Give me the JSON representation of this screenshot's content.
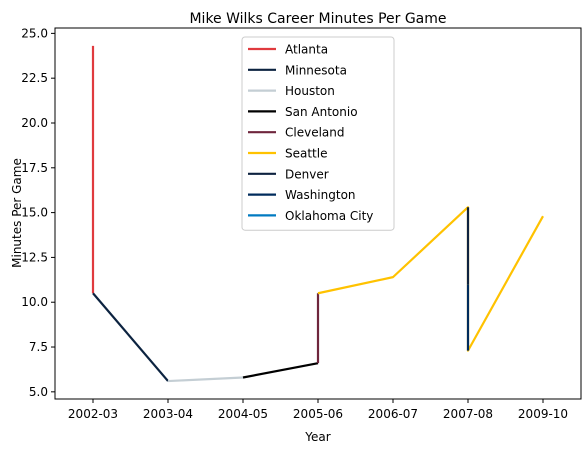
{
  "chart_data": {
    "type": "line",
    "title": "Mike Wilks  Career Minutes Per Game",
    "xlabel": "Year",
    "ylabel": "Minutes Per Game",
    "categories": [
      "2002-03",
      "2003-04",
      "2004-05",
      "2005-06",
      "2006-07",
      "2007-08",
      "2009-10"
    ],
    "ylim": [
      4.6,
      25.3
    ],
    "yticks": [
      "5.0",
      "7.5",
      "10.0",
      "12.5",
      "15.0",
      "17.5",
      "20.0",
      "22.5",
      "25.0"
    ],
    "legend_position": "top-center",
    "grid": false,
    "series": [
      {
        "name": "Atlanta",
        "color": "#e03a3e",
        "points": [
          [
            0,
            24.3
          ],
          [
            0,
            10.5
          ]
        ]
      },
      {
        "name": "Minnesota",
        "color": "#0c2340",
        "points": [
          [
            0,
            10.5
          ],
          [
            1,
            5.6
          ]
        ]
      },
      {
        "name": "Houston",
        "color": "#c4ced4",
        "points": [
          [
            1,
            5.6
          ],
          [
            2,
            5.8
          ]
        ]
      },
      {
        "name": "San Antonio",
        "color": "#000000",
        "points": [
          [
            2,
            5.8
          ],
          [
            3,
            6.6
          ]
        ]
      },
      {
        "name": "Cleveland",
        "color": "#6f263d",
        "points": [
          [
            3,
            6.6
          ],
          [
            3,
            10.5
          ]
        ]
      },
      {
        "name": "Seattle",
        "color": "#ffc200",
        "points": [
          [
            3,
            10.5
          ],
          [
            4,
            11.4
          ],
          [
            5,
            15.3
          ],
          [
            5,
            7.3
          ],
          [
            6,
            14.8
          ]
        ]
      },
      {
        "name": "Denver",
        "color": "#0e2240",
        "points": [
          [
            5,
            15.3
          ],
          [
            5,
            11.0
          ]
        ]
      },
      {
        "name": "Washington",
        "color": "#002b5c",
        "points": [
          [
            5,
            11.0
          ],
          [
            5,
            7.3
          ]
        ]
      },
      {
        "name": "Oklahoma City",
        "color": "#007ac1",
        "points": []
      }
    ]
  }
}
